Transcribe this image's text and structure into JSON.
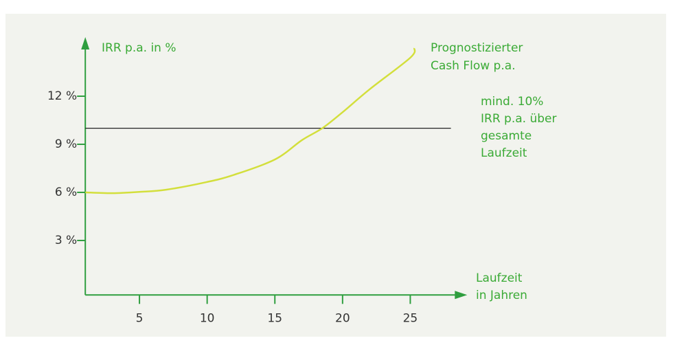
{
  "chart_data": {
    "type": "line",
    "ylabel": "IRR p.a. in %",
    "xlabel": [
      "Laufzeit",
      "in Jahren"
    ],
    "x": [
      1,
      3,
      5,
      7,
      10,
      12,
      15,
      17,
      18.5,
      20,
      22,
      25,
      25.3
    ],
    "series": [
      {
        "color": "#d3df3c",
        "values": [
          6.0,
          5.95,
          6.03,
          6.17,
          6.65,
          7.1,
          8.05,
          9.26,
          10.0,
          11.0,
          12.43,
          14.4,
          15.0
        ]
      }
    ],
    "curve_label": [
      "Prognostizierter",
      "Cash Flow p.a."
    ],
    "hline": {
      "value": 10,
      "xrange": [
        1,
        28
      ],
      "color": "#222222",
      "label": [
        "mind. 10%",
        "IRR p.a. über",
        "gesamte",
        "Laufzeit"
      ]
    },
    "xlim": [
      1,
      29
    ],
    "xticks": [
      5,
      10,
      15,
      20,
      25
    ],
    "ylim": [
      -0.4,
      15.6
    ],
    "yticks": [
      {
        "value": 3,
        "label": "3 %"
      },
      {
        "value": 6,
        "label": "6 %"
      },
      {
        "value": 9,
        "label": "9 %"
      },
      {
        "value": 12,
        "label": "12 %"
      }
    ],
    "axis_color": "#2f9e3f",
    "label_color": "#3aaa35"
  }
}
